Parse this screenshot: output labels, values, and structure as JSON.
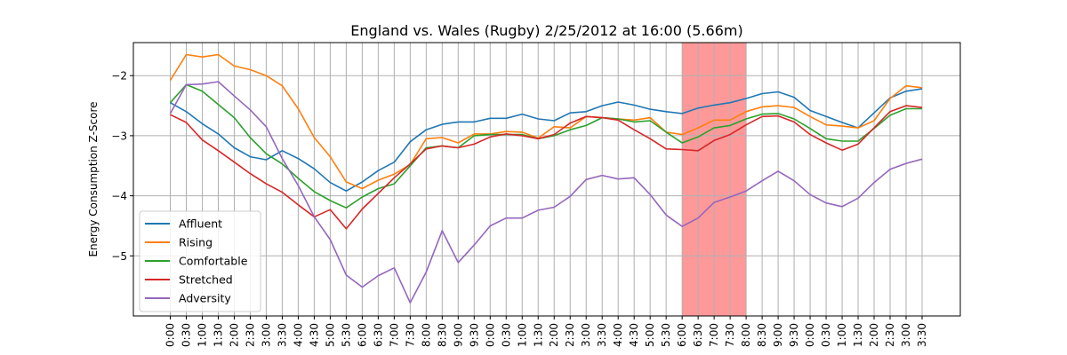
{
  "chart_data": {
    "type": "line",
    "title": "England vs. Wales (Rugby) 2/25/2012 at 16:00 (5.66m)",
    "xlabel": "",
    "ylabel": "Energy Consumption Z-Score",
    "x": [
      "0:00",
      "0:30",
      "1:00",
      "1:30",
      "2:00",
      "2:30",
      "3:00",
      "3:30",
      "4:00",
      "4:30",
      "5:00",
      "5:30",
      "6:00",
      "6:30",
      "7:00",
      "7:30",
      "8:00",
      "8:30",
      "9:00",
      "9:30",
      "0:00",
      "0:30",
      "1:00",
      "1:30",
      "2:00",
      "2:30",
      "3:00",
      "3:30",
      "4:00",
      "4:30",
      "5:00",
      "5:30",
      "6:00",
      "6:30",
      "7:00",
      "7:30",
      "8:00",
      "8:30",
      "9:00",
      "9:30",
      "0:00",
      "0:30",
      "1:00",
      "1:30",
      "2:00",
      "2:30",
      "3:00",
      "3:30"
    ],
    "yticks": [
      -5,
      -4,
      -3,
      -2
    ],
    "ytick_labels": [
      "−5",
      "−4",
      "−3",
      "−2"
    ],
    "ylim": [
      -6.0,
      -1.45
    ],
    "grid": true,
    "legend_position": "lower-left",
    "highlight_span": {
      "x_start": "6:00",
      "x_end": "8:00",
      "color": "#ff9999"
    },
    "series": [
      {
        "name": "Affluent",
        "color": "#1f77b4",
        "values": [
          -2.45,
          -2.6,
          -2.8,
          -2.97,
          -3.2,
          -3.35,
          -3.4,
          -3.25,
          -3.38,
          -3.55,
          -3.78,
          -3.92,
          -3.77,
          -3.58,
          -3.44,
          -3.1,
          -2.9,
          -2.81,
          -2.77,
          -2.77,
          -2.71,
          -2.71,
          -2.64,
          -2.72,
          -2.75,
          -2.62,
          -2.6,
          -2.5,
          -2.44,
          -2.49,
          -2.56,
          -2.6,
          -2.63,
          -2.54,
          -2.49,
          -2.45,
          -2.38,
          -2.3,
          -2.27,
          -2.36,
          -2.58,
          -2.68,
          -2.78,
          -2.87,
          -2.62,
          -2.37,
          -2.26,
          -2.22
        ]
      },
      {
        "name": "Rising",
        "color": "#ff7f0e",
        "values": [
          -2.08,
          -1.65,
          -1.69,
          -1.65,
          -1.84,
          -1.9,
          -2.0,
          -2.17,
          -2.55,
          -3.03,
          -3.35,
          -3.77,
          -3.88,
          -3.74,
          -3.64,
          -3.48,
          -3.05,
          -3.03,
          -3.12,
          -2.97,
          -2.97,
          -2.93,
          -2.94,
          -3.04,
          -2.85,
          -2.87,
          -2.68,
          -2.7,
          -2.72,
          -2.74,
          -2.7,
          -2.94,
          -2.98,
          -2.87,
          -2.74,
          -2.74,
          -2.6,
          -2.52,
          -2.5,
          -2.53,
          -2.68,
          -2.82,
          -2.84,
          -2.87,
          -2.75,
          -2.38,
          -2.17,
          -2.2
        ]
      },
      {
        "name": "Comfortable",
        "color": "#2ca02c",
        "values": [
          -2.45,
          -2.15,
          -2.26,
          -2.48,
          -2.7,
          -3.03,
          -3.3,
          -3.47,
          -3.71,
          -3.93,
          -4.08,
          -4.2,
          -4.02,
          -3.88,
          -3.8,
          -3.5,
          -3.2,
          -3.17,
          -3.2,
          -3.0,
          -2.98,
          -2.98,
          -2.98,
          -3.05,
          -3.0,
          -2.9,
          -2.83,
          -2.7,
          -2.72,
          -2.77,
          -2.75,
          -2.94,
          -3.12,
          -3.02,
          -2.87,
          -2.83,
          -2.72,
          -2.64,
          -2.63,
          -2.72,
          -2.88,
          -3.05,
          -3.09,
          -3.09,
          -2.88,
          -2.66,
          -2.55,
          -2.55
        ]
      },
      {
        "name": "Stretched",
        "color": "#d62728",
        "values": [
          -2.65,
          -2.78,
          -3.07,
          -3.25,
          -3.44,
          -3.63,
          -3.8,
          -3.94,
          -4.15,
          -4.35,
          -4.23,
          -4.55,
          -4.22,
          -3.96,
          -3.7,
          -3.47,
          -3.22,
          -3.17,
          -3.2,
          -3.14,
          -3.02,
          -2.97,
          -3.0,
          -3.05,
          -2.98,
          -2.79,
          -2.68,
          -2.7,
          -2.74,
          -2.9,
          -3.05,
          -3.22,
          -3.23,
          -3.25,
          -3.08,
          -2.98,
          -2.82,
          -2.68,
          -2.67,
          -2.77,
          -2.98,
          -3.12,
          -3.24,
          -3.14,
          -2.87,
          -2.6,
          -2.5,
          -2.53
        ]
      },
      {
        "name": "Adversity",
        "color": "#9467bd",
        "values": [
          -2.63,
          -2.15,
          -2.14,
          -2.1,
          -2.34,
          -2.57,
          -2.85,
          -3.38,
          -3.83,
          -4.35,
          -4.73,
          -5.32,
          -5.52,
          -5.33,
          -5.2,
          -5.78,
          -5.27,
          -4.58,
          -5.11,
          -4.82,
          -4.5,
          -4.37,
          -4.37,
          -4.24,
          -4.19,
          -4.01,
          -3.73,
          -3.66,
          -3.72,
          -3.7,
          -3.98,
          -4.32,
          -4.51,
          -4.37,
          -4.11,
          -4.02,
          -3.92,
          -3.75,
          -3.59,
          -3.75,
          -3.98,
          -4.12,
          -4.18,
          -4.04,
          -3.78,
          -3.56,
          -3.46,
          -3.39
        ]
      }
    ]
  }
}
